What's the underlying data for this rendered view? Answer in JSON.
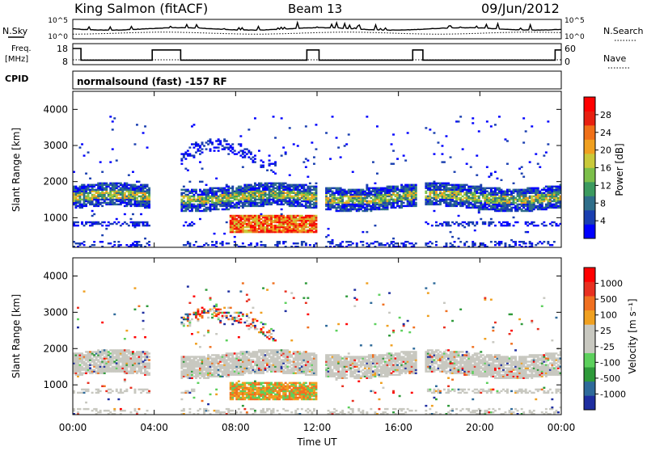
{
  "header": {
    "station": "King Salmon (fitACF)",
    "beam": "Beam 13",
    "date": "09/Jun/2012"
  },
  "params": {
    "nsky_label": "N.Sky",
    "nsky_ticks": [
      "10^5",
      "10^0"
    ],
    "nsearch_label": "N.Search",
    "nsearch_ticks": [
      "10^5",
      "10^0"
    ],
    "freq_label_1": "Freq.",
    "freq_label_2": "[MHz]",
    "freq_ticks": [
      "18",
      "8"
    ],
    "nave_label": "Nave",
    "nave_ticks": [
      "60",
      "0"
    ],
    "cpid_label": "CPID",
    "cpid_text": "normalsound (fast) -157 RF"
  },
  "chart_data": [
    {
      "type": "heatmap",
      "name": "power",
      "ylabel": "Slant Range [km]",
      "ylim": [
        180,
        4500
      ],
      "yticks": [
        "1000",
        "2000",
        "3000",
        "4000"
      ],
      "colorbar_label": "Power [dB]",
      "colorbar_ticks": [
        "28",
        "24",
        "20",
        "16",
        "12",
        "8",
        "4"
      ],
      "colors": [
        "#0000ff",
        "#1a3fb0",
        "#2f6e8a",
        "#3c9a5f",
        "#7cbf4a",
        "#c9c93a",
        "#f0a020",
        "#f07018",
        "#e82010",
        "#ff0000"
      ],
      "blank_intervals_hours": [
        [
          3.8,
          5.2
        ],
        [
          12.0,
          12.3
        ],
        [
          16.9,
          17.2
        ]
      ]
    },
    {
      "type": "heatmap",
      "name": "velocity",
      "ylabel": "Slant Range [km]",
      "ylim": [
        180,
        4500
      ],
      "yticks": [
        "1000",
        "2000",
        "3000",
        "4000"
      ],
      "colorbar_label": "Velocity [m s⁻¹]",
      "colorbar_ticks": [
        "1000",
        "500",
        "100",
        "25",
        "-25",
        "-100",
        "-500",
        "-1000"
      ],
      "colors": [
        "#1e2ea0",
        "#2e6a9a",
        "#2e9a3a",
        "#5cd05c",
        "#c8c8c0",
        "#c8c8c0",
        "#f0a020",
        "#f07020",
        "#e83020",
        "#ff0000"
      ],
      "blank_intervals_hours": [
        [
          3.8,
          5.2
        ],
        [
          12.0,
          12.3
        ],
        [
          16.9,
          17.2
        ]
      ]
    }
  ],
  "xaxis": {
    "label": "Time UT",
    "ticks": [
      "00:00",
      "04:00",
      "08:00",
      "12:00",
      "16:00",
      "20:00",
      "00:00"
    ],
    "range_hours": [
      0,
      24
    ]
  },
  "freq_series": {
    "breakpoints_hours": [
      0.0,
      0.4,
      3.9,
      5.3,
      11.5,
      12.1,
      16.7,
      17.2,
      23.7,
      24.0
    ],
    "values_mhz": [
      18,
      10,
      17,
      10,
      17,
      10,
      17,
      10,
      17,
      17
    ]
  }
}
